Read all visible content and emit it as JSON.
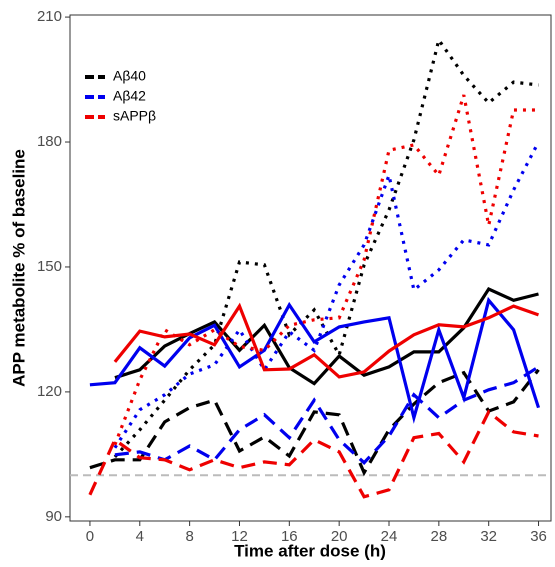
{
  "chart_data": {
    "type": "line",
    "x_label": "Time after dose (h)",
    "y_label": "APP metabolite % of baseline",
    "x": [
      0,
      2,
      4,
      6,
      8,
      10,
      12,
      14,
      16,
      18,
      20,
      22,
      24,
      26,
      28,
      30,
      32,
      34,
      36
    ],
    "xlim": [
      -1.6,
      37
    ],
    "ylim": [
      89,
      210.5
    ],
    "xticks": [
      0,
      4,
      8,
      12,
      16,
      20,
      24,
      28,
      32,
      36
    ],
    "yticks": [
      90,
      120,
      150,
      180,
      210
    ],
    "reference_line": 100,
    "reference_color": "#bbbbbb",
    "legend": "top-left",
    "series": [
      {
        "name": "Aβ40",
        "color": "#000000",
        "lines": [
          {
            "dash": "solid",
            "values": [
              null,
              123.4,
              125.3,
              131,
              134,
              136.8,
              130,
              136,
              125.8,
              122,
              128.6,
              124,
              126,
              129.6,
              129.6,
              135.4,
              144.7,
              142,
              143.5
            ]
          },
          {
            "dash": "dashed",
            "values": [
              101.8,
              103.7,
              103.7,
              112.8,
              116.2,
              118,
              105.8,
              109.2,
              104.6,
              115.2,
              114.5,
              100.6,
              110.9,
              117.1,
              122.2,
              124.6,
              115.4,
              117.6,
              125.3
            ]
          },
          {
            "dash": "dotted",
            "values": [
              null,
              104.4,
              110.9,
              118,
              125.3,
              131.3,
              151.2,
              150.5,
              133.7,
              139.7,
              128.9,
              150.5,
              163.7,
              180.5,
              204.5,
              196,
              189.4,
              194.4,
              193.7
            ]
          }
        ]
      },
      {
        "name": "Aβ42",
        "color": "#0000ee",
        "lines": [
          {
            "dash": "solid",
            "values": [
              121.7,
              122.2,
              130.6,
              126.2,
              133,
              136,
              126,
              130,
              140.9,
              132,
              135.6,
              136.8,
              137.8,
              113.8,
              134.9,
              118.6,
              142,
              134.9,
              116.2
            ]
          },
          {
            "dash": "dashed",
            "values": [
              null,
              104.9,
              105.6,
              103.7,
              107,
              103.7,
              110.9,
              114.5,
              109,
              118,
              108.5,
              103,
              109.4,
              119.3,
              113.8,
              118,
              120.5,
              122.2,
              126
            ]
          },
          {
            "dash": "dotted",
            "values": [
              null,
              106.6,
              115.7,
              119.3,
              124.3,
              126.5,
              134.9,
              125.3,
              134.4,
              130,
              145.7,
              155.3,
              172,
              144.5,
              149.3,
              156.5,
              155.3,
              168.5,
              180
            ]
          }
        ]
      },
      {
        "name": "sAPPβ",
        "color": "#ee0000",
        "lines": [
          {
            "dash": "solid",
            "values": [
              null,
              127.2,
              134.6,
              133.2,
              133.9,
              131.3,
              140.6,
              125.3,
              125.5,
              128.9,
              123.6,
              124.8,
              129.8,
              133.7,
              136.1,
              135.6,
              137.8,
              140.6,
              138.5
            ]
          },
          {
            "dash": "dashed",
            "values": [
              95.3,
              108.5,
              104.2,
              103.7,
              101.3,
              103.7,
              101.8,
              103.2,
              102.5,
              108.5,
              105.6,
              94.8,
              96.5,
              109,
              110,
              103.2,
              115.2,
              110.4,
              109.4
            ]
          },
          {
            "dash": "dotted",
            "values": [
              null,
              107.3,
              122.9,
              134.9,
              131.3,
              134.9,
              130.9,
              130,
              136,
              137.3,
              137.8,
              151.7,
              178,
              179.3,
              172,
              191.3,
              160,
              187.7,
              187.7
            ]
          }
        ]
      }
    ]
  }
}
